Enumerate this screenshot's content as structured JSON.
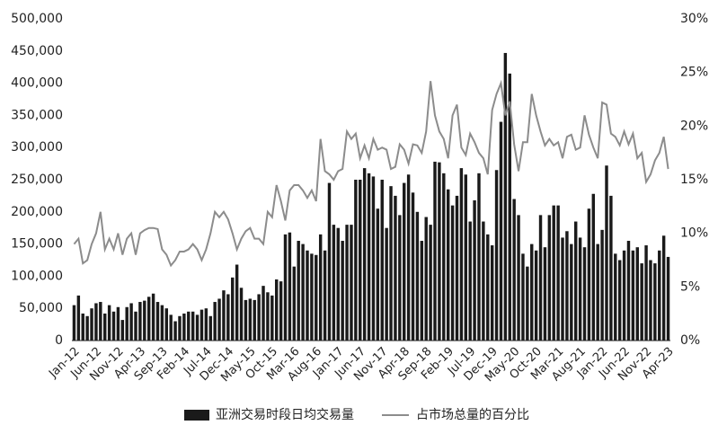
{
  "chart_data": {
    "type": "bar_line",
    "categories": [
      "Jan-12",
      null,
      null,
      null,
      null,
      "Jun-12",
      null,
      null,
      null,
      null,
      "Nov-12",
      null,
      null,
      null,
      null,
      "Apr-13",
      null,
      null,
      null,
      null,
      "Sep-13",
      null,
      null,
      null,
      null,
      "Feb-14",
      null,
      null,
      null,
      null,
      "Jul-14",
      null,
      null,
      null,
      null,
      "Dec-14",
      null,
      null,
      null,
      null,
      "May-15",
      null,
      null,
      null,
      null,
      "Oct-15",
      null,
      null,
      null,
      null,
      "Mar-16",
      null,
      null,
      null,
      null,
      "Aug-16",
      null,
      null,
      null,
      null,
      "Jan-17",
      null,
      null,
      null,
      null,
      "Jun-17",
      null,
      null,
      null,
      null,
      "Nov-17",
      null,
      null,
      null,
      null,
      "Apr-18",
      null,
      null,
      null,
      null,
      "Sep-18",
      null,
      null,
      null,
      null,
      "Feb-19",
      null,
      null,
      null,
      null,
      "Jul-19",
      null,
      null,
      null,
      null,
      "Dec-19",
      null,
      null,
      null,
      null,
      "May-20",
      null,
      null,
      null,
      null,
      "Oct-20",
      null,
      null,
      null,
      null,
      "Mar-21",
      null,
      null,
      null,
      null,
      "Aug-21",
      null,
      null,
      null,
      null,
      "Jan-22",
      null,
      null,
      null,
      null,
      "Jun-22",
      null,
      null,
      null,
      null,
      "Nov-22",
      null,
      null,
      null,
      null,
      "Apr-23"
    ],
    "series": [
      {
        "name": "亚洲交易时段日均交易量",
        "type": "bar",
        "color": "#1a1a1a",
        "values": [
          55000,
          70000,
          42000,
          38000,
          50000,
          58000,
          60000,
          42000,
          55000,
          45000,
          52000,
          32000,
          52000,
          58000,
          45000,
          60000,
          62000,
          68000,
          73000,
          60000,
          55000,
          50000,
          40000,
          30000,
          38000,
          42000,
          45000,
          45000,
          40000,
          48000,
          50000,
          38000,
          60000,
          65000,
          78000,
          72000,
          98000,
          118000,
          82000,
          63000,
          65000,
          63000,
          72000,
          85000,
          75000,
          70000,
          95000,
          92000,
          165000,
          168000,
          115000,
          155000,
          150000,
          140000,
          135000,
          133000,
          165000,
          140000,
          245000,
          180000,
          175000,
          155000,
          180000,
          180000,
          250000,
          250000,
          268000,
          260000,
          255000,
          205000,
          250000,
          175000,
          240000,
          225000,
          195000,
          245000,
          258000,
          230000,
          200000,
          155000,
          192000,
          180000,
          278000,
          277000,
          260000,
          235000,
          210000,
          225000,
          268000,
          258000,
          185000,
          218000,
          260000,
          185000,
          165000,
          148000,
          265000,
          340000,
          447000,
          415000,
          220000,
          195000,
          135000,
          115000,
          150000,
          140000,
          195000,
          145000,
          195000,
          210000,
          210000,
          160000,
          170000,
          150000,
          185000,
          160000,
          145000,
          205000,
          228000,
          150000,
          172000,
          272000,
          225000,
          135000,
          125000,
          140000,
          155000,
          140000,
          145000,
          120000,
          148000,
          125000,
          120000,
          140000,
          163000,
          130000
        ]
      },
      {
        "name": "占市场总量的百分比",
        "type": "line",
        "axis": "y2",
        "color": "#8c8c8c",
        "values": [
          9,
          9.5,
          7.2,
          7.5,
          9,
          10,
          12,
          8.5,
          9.5,
          8.5,
          10,
          8,
          9.5,
          10,
          8,
          10,
          10.3,
          10.5,
          10.5,
          10.4,
          8.5,
          8,
          7,
          7.5,
          8.3,
          8.3,
          8.5,
          9,
          8.5,
          7.5,
          8.5,
          10,
          12,
          11.5,
          12,
          11.3,
          10,
          8.5,
          9.5,
          10.2,
          10.5,
          9.5,
          9.5,
          9,
          12,
          11.5,
          14.5,
          13,
          11.2,
          14,
          14.5,
          14.5,
          14,
          13.3,
          14,
          13,
          18.8,
          15.8,
          15.5,
          15,
          15.8,
          16,
          19.5,
          18.8,
          19.3,
          17,
          18.2,
          17,
          18.8,
          17.8,
          18,
          17.8,
          16,
          16.2,
          18.3,
          17.8,
          16.5,
          18.3,
          18.2,
          17.5,
          19.5,
          24.2,
          21,
          19.5,
          18.8,
          17,
          21,
          22,
          18,
          17.3,
          19.3,
          18.5,
          17.5,
          17,
          15.5,
          21.5,
          23,
          24,
          21,
          22.3,
          18.3,
          15.8,
          18.5,
          18.5,
          23,
          21,
          19.5,
          18.2,
          18.8,
          18.2,
          18.5,
          17,
          19,
          19.2,
          17.8,
          18,
          21,
          19.2,
          18,
          17,
          22.2,
          22,
          19.3,
          19,
          18.2,
          19.5,
          18.3,
          19.3,
          17,
          17.5,
          14.8,
          15.5,
          16.8,
          17.5,
          19,
          16
        ]
      }
    ],
    "ylim": [
      0,
      500000
    ],
    "yticks": [
      0,
      {
        "value": 50000,
        "label": "50,000"
      },
      {
        "value": 100000,
        "label": "100,000"
      },
      {
        "value": 150000,
        "label": "150,000"
      },
      {
        "value": 200000,
        "label": "200,000"
      },
      {
        "value": 250000,
        "label": "250,000"
      },
      {
        "value": 300000,
        "label": "300,000"
      },
      {
        "value": 350000,
        "label": "350,000"
      },
      {
        "value": 400000,
        "label": "400,000"
      },
      {
        "value": 450000,
        "label": "450,000"
      },
      {
        "value": 500000,
        "label": "500,000"
      }
    ],
    "y2lim": [
      0,
      30
    ],
    "y2ticks": [
      {
        "value": 0,
        "label": "0%"
      },
      {
        "value": 5,
        "label": "5%"
      },
      {
        "value": 10,
        "label": "10%"
      },
      {
        "value": 15,
        "label": "15%"
      },
      {
        "value": 20,
        "label": "20%"
      },
      {
        "value": 25,
        "label": "25%"
      },
      {
        "value": 30,
        "label": "30%"
      }
    ],
    "legend": "bottom"
  }
}
